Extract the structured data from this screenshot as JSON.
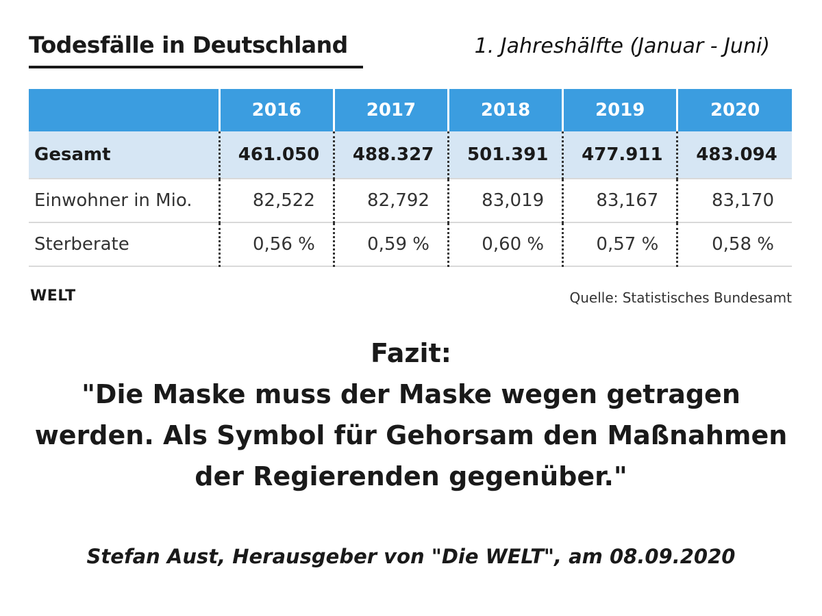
{
  "header": {
    "title": "Todesfälle in Deutschland",
    "subtitle": "1. Jahreshälfte (Januar - Juni)"
  },
  "table": {
    "years": [
      "2016",
      "2017",
      "2018",
      "2019",
      "2020"
    ],
    "rows": [
      {
        "label": "Gesamt",
        "values": [
          "461.050",
          "488.327",
          "501.391",
          "477.911",
          "483.094"
        ]
      },
      {
        "label": "Einwohner in Mio.",
        "values": [
          "82,522",
          "82,792",
          "83,019",
          "83,167",
          "83,170"
        ]
      },
      {
        "label": "Sterberate",
        "values": [
          "0,56 %",
          "0,59 %",
          "0,60 %",
          "0,57 %",
          "0,58 %"
        ]
      }
    ]
  },
  "footer": {
    "logo": "WELT",
    "source": "Quelle: Statistisches Bundesamt"
  },
  "conclusion": {
    "heading": "Fazit:",
    "quote": "\"Die Maske muss der Maske wegen getragen werden. Als Symbol für Gehorsam den Maßnahmen der Regierenden gegenüber.\"",
    "attribution": "Stefan Aust, Herausgeber von \"Die WELT\", am 08.09.2020"
  },
  "colors": {
    "header_blue": "#3b9de0",
    "total_row_bg": "#d6e6f4",
    "text_dark": "#1a1a1a"
  }
}
